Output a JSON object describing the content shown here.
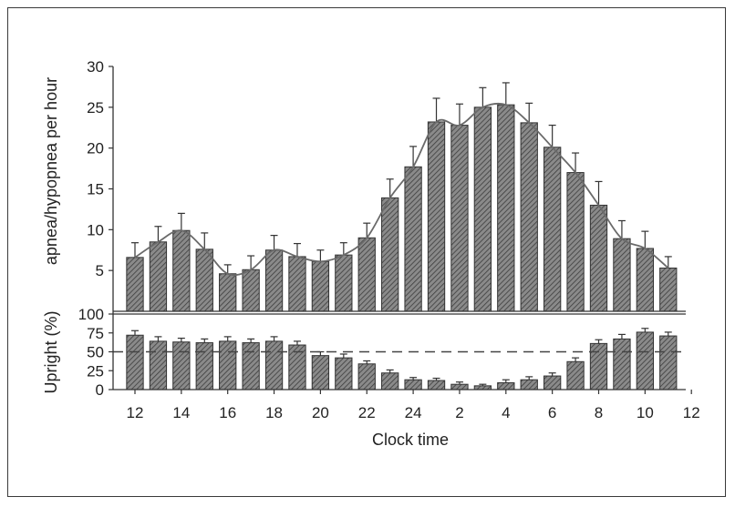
{
  "colors": {
    "bar_fill": "#8a8a8a",
    "hatch": "#3c3c3c",
    "axis": "#333333",
    "line": "#6a6a6a"
  },
  "chart_data": [
    {
      "type": "bar",
      "panel": "top",
      "ylabel": "apnea/hypopnea per hour",
      "ylim": [
        0,
        30
      ],
      "yticks": [
        5,
        10,
        15,
        20,
        25,
        30
      ],
      "categories": [
        "12",
        "13",
        "14",
        "15",
        "16",
        "17",
        "18",
        "19",
        "20",
        "21",
        "22",
        "23",
        "24",
        "1",
        "2",
        "3",
        "4",
        "5",
        "6",
        "7",
        "8",
        "9",
        "10",
        "11"
      ],
      "values": [
        6.6,
        8.5,
        9.9,
        7.6,
        4.6,
        5.1,
        7.5,
        6.7,
        6.1,
        6.9,
        9.0,
        13.9,
        17.7,
        23.2,
        22.8,
        25.0,
        25.3,
        23.1,
        20.1,
        17.0,
        13.0,
        8.9,
        7.7,
        5.3
      ],
      "error_upper": [
        8.4,
        10.4,
        12.0,
        9.6,
        5.7,
        6.8,
        9.3,
        8.3,
        7.5,
        8.4,
        10.8,
        16.2,
        20.2,
        26.1,
        25.4,
        27.4,
        28.0,
        25.5,
        22.8,
        19.4,
        15.9,
        11.1,
        9.8,
        6.7
      ],
      "trend": "smooth line through bar tops",
      "grid": false
    },
    {
      "type": "bar",
      "panel": "bottom",
      "ylabel": "Upright (%)",
      "xlabel": "Clock time",
      "ylim": [
        0,
        100
      ],
      "yticks": [
        0,
        25,
        50,
        75,
        100
      ],
      "xticks": [
        "12",
        "14",
        "16",
        "18",
        "20",
        "22",
        "24",
        "2",
        "4",
        "6",
        "8",
        "10",
        "12"
      ],
      "categories": [
        "12",
        "13",
        "14",
        "15",
        "16",
        "17",
        "18",
        "19",
        "20",
        "21",
        "22",
        "23",
        "24",
        "1",
        "2",
        "3",
        "4",
        "5",
        "6",
        "7",
        "8",
        "9",
        "10",
        "11"
      ],
      "values": [
        72,
        64,
        63,
        62,
        64,
        62,
        64,
        59,
        45,
        42,
        34,
        22,
        13,
        12,
        7,
        5,
        9,
        13,
        18,
        37,
        61,
        67,
        76,
        71
      ],
      "error_upper": [
        78,
        70,
        68,
        67,
        70,
        67,
        70,
        64,
        50,
        47,
        38,
        26,
        16,
        15,
        10,
        7,
        13,
        17,
        22,
        42,
        66,
        73,
        81,
        76
      ],
      "reference_line": 50,
      "grid": false
    }
  ]
}
